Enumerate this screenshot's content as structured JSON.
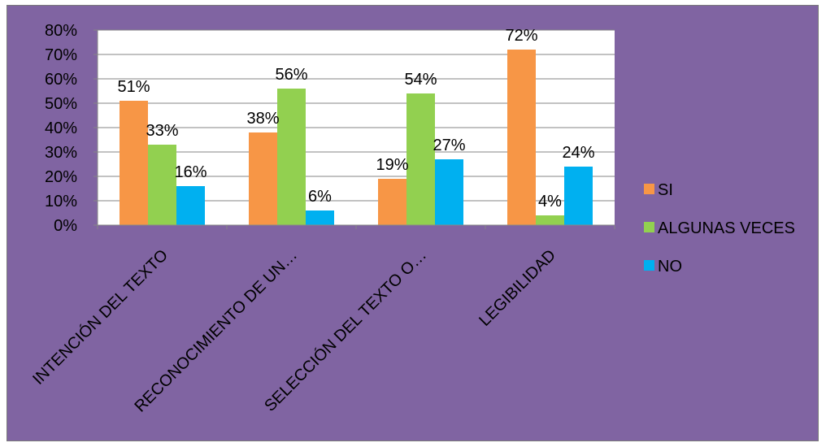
{
  "chart_data": {
    "type": "bar",
    "title": "",
    "xlabel": "",
    "ylabel": "",
    "categories": [
      "INTENCIÓN DEL TEXTO",
      "RECONOCIMIENTO DE UN…",
      "SELECCIÓN DEL TEXTO O…",
      "LEGIBILIDAD"
    ],
    "series": [
      {
        "name": "SI",
        "values": [
          51,
          38,
          19,
          72
        ],
        "labels": [
          "51%",
          "38%",
          "19%",
          "72%"
        ],
        "color": "#f79646"
      },
      {
        "name": "ALGUNAS VECES",
        "values": [
          33,
          56,
          54,
          4
        ],
        "labels": [
          "33%",
          "56%",
          "54%",
          "4%"
        ],
        "color": "#92d050"
      },
      {
        "name": "NO",
        "values": [
          16,
          6,
          27,
          24
        ],
        "labels": [
          "16%",
          "6%",
          "27%",
          "24%"
        ],
        "color": "#00b0f0"
      }
    ],
    "ylim": [
      0,
      80
    ],
    "yticks": [
      "0%",
      "10%",
      "20%",
      "30%",
      "40%",
      "50%",
      "60%",
      "70%",
      "80%"
    ],
    "grid": true,
    "legend_position": "right",
    "colors": {
      "background": "#8064a2",
      "plot_area": "#ffffff",
      "gridline": "#868686"
    }
  }
}
